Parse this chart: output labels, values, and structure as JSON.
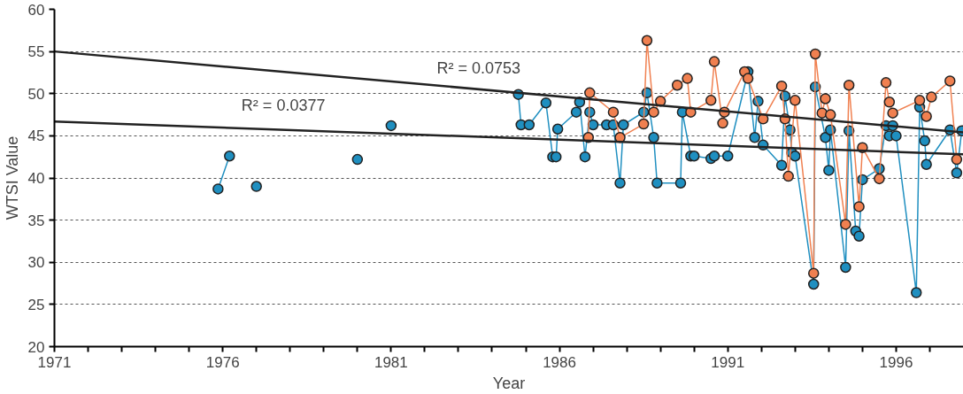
{
  "chart_data": {
    "type": "line",
    "xlabel": "Year",
    "ylabel": "WTSI Value",
    "xlim": [
      1971,
      1998
    ],
    "ylim": [
      20,
      60
    ],
    "xticks": [
      1971,
      {
        "value": 1972,
        "label": null
      },
      {
        "value": 1973,
        "label": null
      },
      {
        "value": 1974,
        "label": null
      },
      {
        "value": 1975,
        "label": null
      },
      1976,
      {
        "value": 1977,
        "label": null
      },
      {
        "value": 1978,
        "label": null
      },
      {
        "value": 1979,
        "label": null
      },
      {
        "value": 1980,
        "label": null
      },
      1981,
      {
        "value": 1982,
        "label": null
      },
      {
        "value": 1983,
        "label": null
      },
      {
        "value": 1984,
        "label": null
      },
      {
        "value": 1985,
        "label": null
      },
      1986,
      {
        "value": 1987,
        "label": null
      },
      {
        "value": 1988,
        "label": null
      },
      {
        "value": 1989,
        "label": null
      },
      {
        "value": 1990,
        "label": null
      },
      1991,
      {
        "value": 1992,
        "label": null
      },
      {
        "value": 1993,
        "label": null
      },
      {
        "value": 1994,
        "label": null
      },
      {
        "value": 1995,
        "label": null
      },
      1996,
      {
        "value": 1997,
        "label": null
      }
    ],
    "yticks": [
      20,
      25,
      30,
      35,
      40,
      45,
      50,
      55,
      60
    ],
    "grid": "y",
    "marker": "circle",
    "line_style": "solid",
    "annotations": [
      "R² = 0.0753",
      "R² = 0.0377"
    ],
    "series": [
      {
        "color": "#1f8fc0",
        "x": [
          1975.86,
          1976.2,
          1976.6,
          1977.0,
          1978.5,
          1980.0,
          1980.5,
          1981.0,
          1983.0,
          1984.78,
          1984.86,
          1985.1,
          1985.6,
          1985.8,
          1985.9,
          1985.95,
          1986.5,
          1986.6,
          1986.76,
          1986.9,
          1987.0,
          1987.4,
          1987.6,
          1987.8,
          1987.9,
          1988.5,
          1988.6,
          1988.8,
          1988.9,
          1989.6,
          1989.65,
          1989.9,
          1990.0,
          1990.5,
          1990.6,
          1991.0,
          1991.6,
          1991.8,
          1991.9,
          1992.05,
          1992.6,
          1992.7,
          1992.85,
          1992.9,
          1993.0,
          1993.55,
          1993.6,
          1993.9,
          1994.0,
          1994.05,
          1994.5,
          1994.6,
          1994.8,
          1994.9,
          1995.0,
          1995.5,
          1995.7,
          1995.8,
          1995.9,
          1996.0,
          1996.6,
          1996.7,
          1996.85,
          1996.9,
          1997.6,
          1997.8,
          1997.95
        ],
        "values": [
          38.7,
          42.6,
          null,
          39.0,
          null,
          42.2,
          null,
          46.2,
          null,
          49.9,
          46.3,
          46.3,
          48.9,
          42.5,
          42.5,
          45.8,
          47.8,
          49.0,
          42.5,
          47.8,
          46.3,
          46.3,
          46.3,
          39.4,
          46.3,
          47.8,
          50.1,
          44.8,
          39.4,
          39.4,
          47.8,
          42.6,
          42.6,
          42.3,
          42.6,
          42.6,
          52.6,
          44.8,
          49.1,
          43.9,
          41.5,
          49.7,
          45.7,
          43.0,
          42.6,
          27.4,
          50.8,
          44.8,
          40.9,
          45.7,
          29.4,
          45.6,
          33.7,
          33.1,
          39.8,
          41.1,
          46.2,
          45.0,
          46.2,
          45.0,
          26.4,
          48.4,
          44.4,
          41.6,
          45.7,
          40.6,
          45.6
        ]
      },
      {
        "color": "#f08050",
        "x": [
          1986.86,
          1986.9,
          1987.6,
          1987.8,
          1988.5,
          1988.6,
          1988.8,
          1989.0,
          1989.5,
          1989.8,
          1989.9,
          1990.5,
          1990.6,
          1990.85,
          1990.9,
          1991.5,
          1991.6,
          1992.05,
          1992.6,
          1992.7,
          1992.8,
          1993.0,
          1993.55,
          1993.6,
          1993.8,
          1993.9,
          1994.05,
          1994.5,
          1994.6,
          1994.9,
          1995.0,
          1995.5,
          1995.7,
          1995.8,
          1995.9,
          1996.7,
          1996.9,
          1997.05,
          1997.6,
          1997.8
        ],
        "values": [
          44.8,
          50.1,
          47.8,
          44.8,
          46.4,
          56.3,
          47.8,
          49.1,
          51.0,
          51.8,
          47.8,
          49.2,
          53.8,
          46.5,
          47.8,
          52.6,
          51.8,
          47.0,
          50.9,
          47.0,
          40.2,
          49.2,
          28.7,
          54.7,
          47.7,
          49.4,
          47.5,
          34.5,
          51.0,
          36.6,
          43.6,
          39.9,
          51.3,
          49.0,
          47.7,
          49.2,
          47.3,
          49.6,
          51.5,
          42.2
        ]
      },
      {
        "type": "line",
        "marker": "none",
        "color": "#222222",
        "x": [
          1971,
          1998
        ],
        "values": [
          55.0,
          45.4
        ]
      },
      {
        "type": "line",
        "marker": "none",
        "color": "#222222",
        "x": [
          1971,
          1998
        ],
        "values": [
          46.7,
          42.8
        ]
      }
    ]
  }
}
